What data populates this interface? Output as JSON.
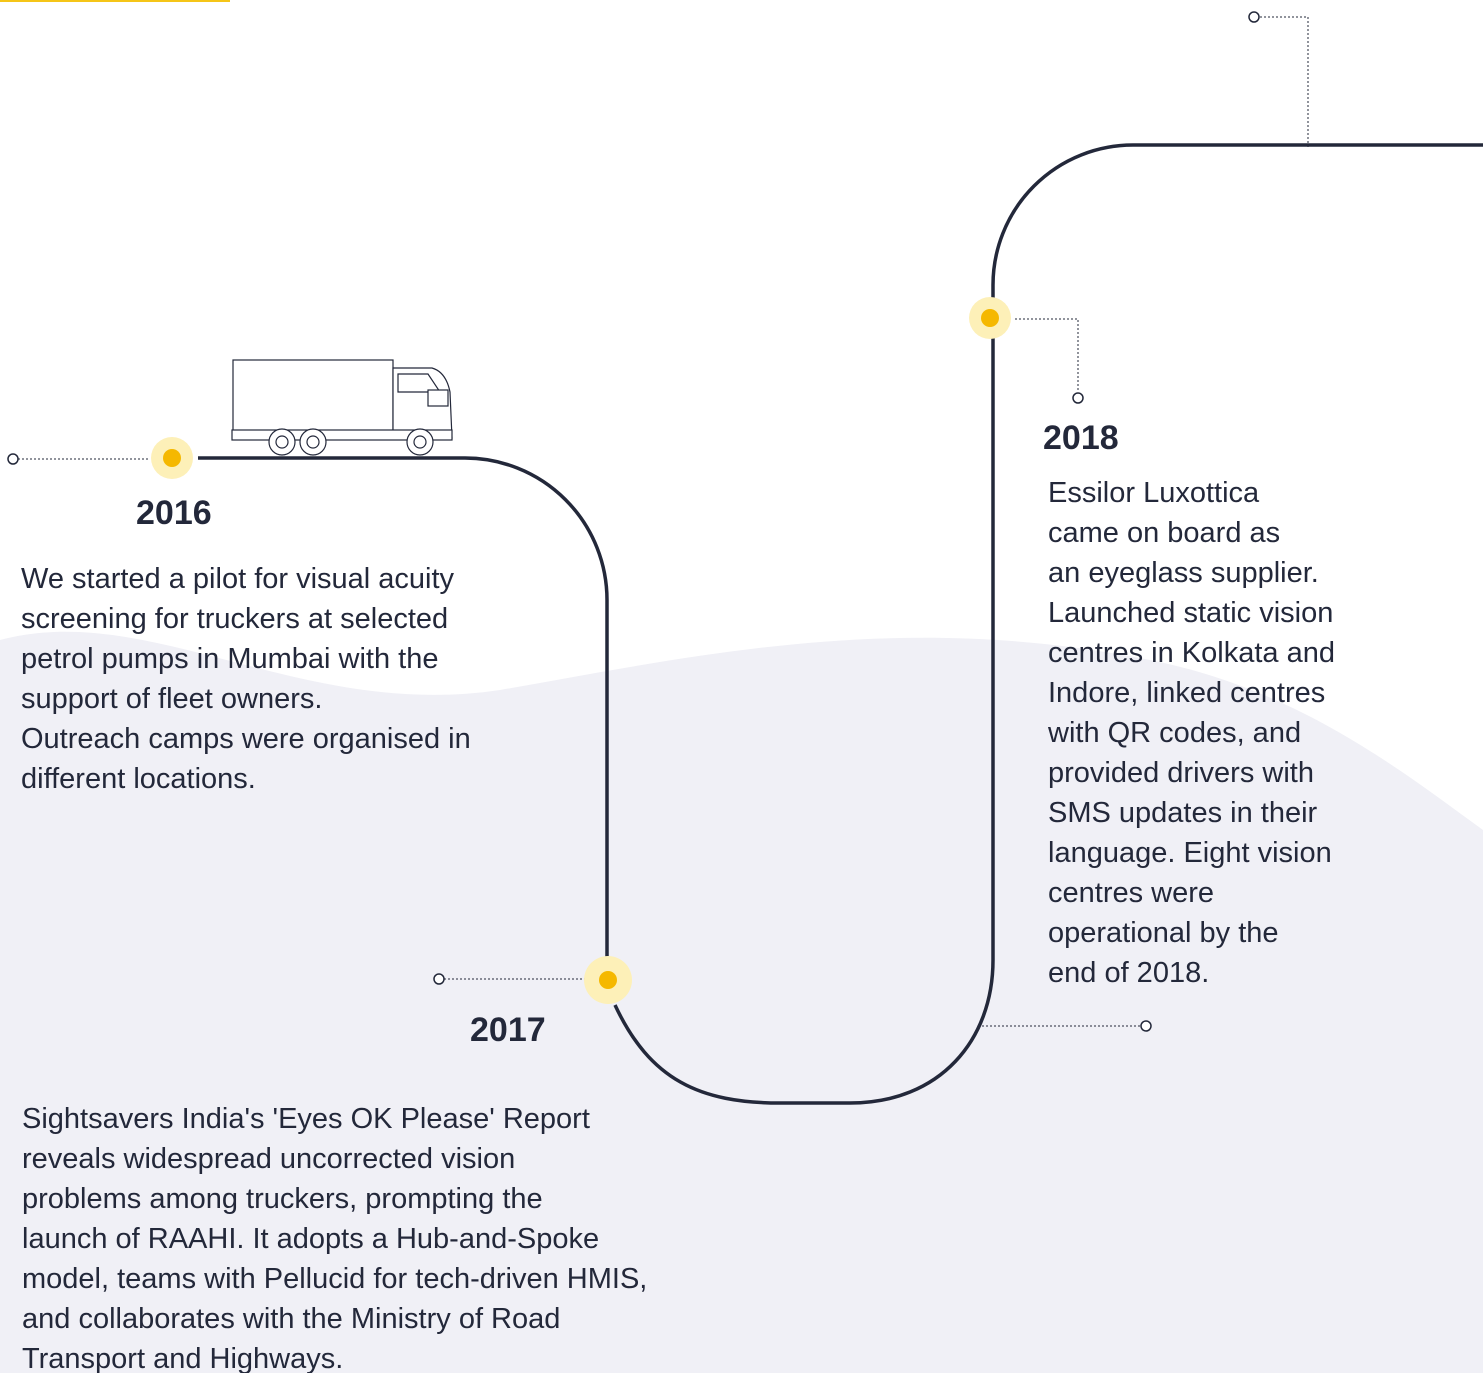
{
  "milestones": [
    {
      "year": "2016",
      "lines": [
        "We started a pilot for visual acuity",
        "screening for truckers at selected",
        "petrol pumps in Mumbai with the",
        "support of fleet owners.",
        "Outreach camps were organised in",
        "different locations."
      ]
    },
    {
      "year": "2017",
      "lines": [
        "Sightsavers India's 'Eyes OK Please' Report",
        "reveals widespread uncorrected vision",
        "problems among truckers, prompting  the",
        "launch of RAAHI. It adopts a Hub-and-Spoke",
        "model, teams with Pellucid for tech-driven HMIS,",
        "and collaborates with the Ministry of Road",
        "Transport and Highways."
      ]
    },
    {
      "year": "2018",
      "lines": [
        "Essilor Luxottica",
        "came on board as",
        "an eyeglass supplier.",
        "Launched static vision",
        "centres in Kolkata and",
        "Indore, linked centres",
        "with QR codes, and",
        "provided drivers with",
        "SMS updates in their",
        "language. Eight vision",
        "centres were",
        "operational by the",
        "end of 2018."
      ]
    }
  ]
}
